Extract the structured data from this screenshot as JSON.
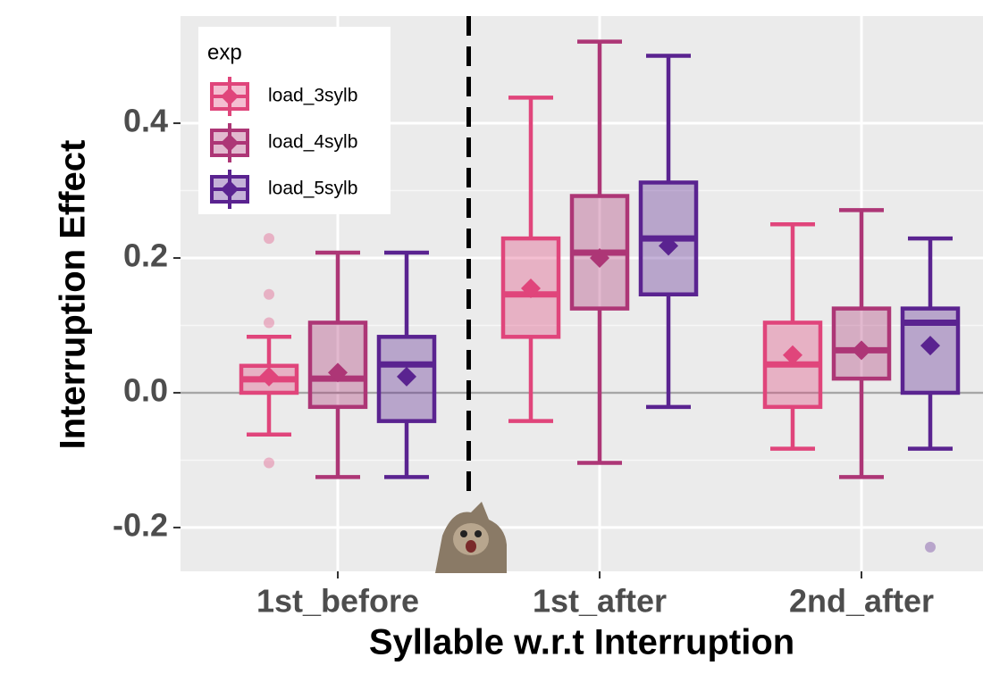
{
  "chart_data": {
    "type": "boxplot",
    "x_label": "Syllable w.r.t Interruption",
    "y_label": "Interruption Effect",
    "categories": [
      "1st_before",
      "1st_after",
      "2nd_after"
    ],
    "ylim": [
      -0.265,
      0.559
    ],
    "yticks": [
      -0.2,
      {
        "value": 0,
        "label": "0.0"
      },
      0.2,
      0.4
    ],
    "grid": true,
    "hline": 0,
    "legend_title": "exp",
    "legend_position": "top-left",
    "series": [
      {
        "name": "load_3sylb",
        "color": "#e0457b",
        "whisker_low": [
          -0.062,
          -0.042,
          -0.083
        ],
        "q1": [
          0.0,
          0.083,
          -0.021
        ],
        "median": [
          0.02,
          0.146,
          0.042
        ],
        "q3": [
          0.04,
          0.229,
          0.104
        ],
        "whisker_high": [
          0.083,
          0.438,
          0.25
        ],
        "mean": [
          0.024,
          0.155,
          0.056
        ],
        "outliers": [
          [
            0.229,
            0.146,
            0.104,
            -0.104
          ],
          [],
          []
        ]
      },
      {
        "name": "load_4sylb",
        "color": "#ad3676",
        "whisker_low": [
          -0.125,
          -0.104,
          -0.125
        ],
        "q1": [
          -0.021,
          0.125,
          0.021
        ],
        "median": [
          0.021,
          0.208,
          0.063
        ],
        "q3": [
          0.104,
          0.292,
          0.125
        ],
        "whisker_high": [
          0.208,
          0.521,
          0.271
        ],
        "mean": [
          0.03,
          0.2,
          0.063
        ],
        "outliers": [
          [],
          [],
          []
        ]
      },
      {
        "name": "load_5sylb",
        "color": "#5a2390",
        "whisker_low": [
          -0.125,
          -0.021,
          -0.083
        ],
        "q1": [
          -0.042,
          0.146,
          0.0
        ],
        "median": [
          0.042,
          0.229,
          0.104
        ],
        "q3": [
          0.083,
          0.312,
          0.125
        ],
        "whisker_high": [
          0.208,
          0.5,
          0.229
        ],
        "mean": [
          0.024,
          0.218,
          0.07
        ],
        "outliers": [
          [],
          [],
          [
            -0.229
          ]
        ]
      }
    ]
  }
}
